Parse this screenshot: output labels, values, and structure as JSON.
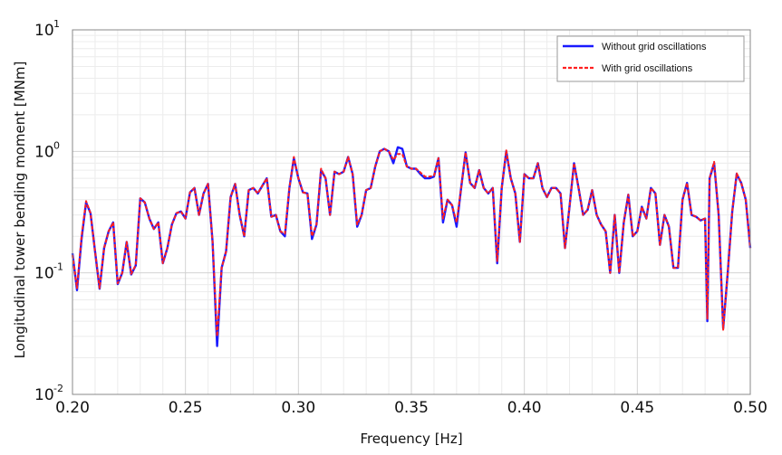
{
  "chart_data": {
    "type": "line",
    "title": "",
    "xlabel": "Frequency [Hz]",
    "ylabel": "Longitudinal tower bending moment  [MNm]",
    "xlim": [
      0.2,
      0.5
    ],
    "ylim": [
      0.01,
      10
    ],
    "yscale": "log",
    "grid": true,
    "legend_position": "top-right",
    "x_ticks": [
      "0.20",
      "0.25",
      "0.30",
      "0.35",
      "0.40",
      "0.45",
      "0.50"
    ],
    "y_ticks": [
      {
        "base": "10",
        "exp": "-2"
      },
      {
        "base": "10",
        "exp": "-1"
      },
      {
        "base": "10",
        "exp": "0"
      },
      {
        "base": "10",
        "exp": "1"
      }
    ],
    "series": [
      {
        "name": "Without grid oscillations",
        "color": "#1a1aff",
        "style": "solid",
        "points": [
          [
            0.2,
            0.145
          ],
          [
            0.202,
            0.072
          ],
          [
            0.204,
            0.19
          ],
          [
            0.206,
            0.38
          ],
          [
            0.208,
            0.31
          ],
          [
            0.21,
            0.15
          ],
          [
            0.212,
            0.074
          ],
          [
            0.214,
            0.16
          ],
          [
            0.216,
            0.22
          ],
          [
            0.218,
            0.26
          ],
          [
            0.22,
            0.081
          ],
          [
            0.222,
            0.1
          ],
          [
            0.224,
            0.18
          ],
          [
            0.226,
            0.097
          ],
          [
            0.228,
            0.115
          ],
          [
            0.23,
            0.41
          ],
          [
            0.232,
            0.38
          ],
          [
            0.234,
            0.28
          ],
          [
            0.236,
            0.23
          ],
          [
            0.238,
            0.26
          ],
          [
            0.24,
            0.12
          ],
          [
            0.242,
            0.16
          ],
          [
            0.244,
            0.25
          ],
          [
            0.246,
            0.31
          ],
          [
            0.248,
            0.32
          ],
          [
            0.25,
            0.28
          ],
          [
            0.252,
            0.46
          ],
          [
            0.254,
            0.5
          ],
          [
            0.256,
            0.3
          ],
          [
            0.258,
            0.45
          ],
          [
            0.26,
            0.54
          ],
          [
            0.262,
            0.18
          ],
          [
            0.264,
            0.025
          ],
          [
            0.266,
            0.11
          ],
          [
            0.268,
            0.15
          ],
          [
            0.27,
            0.42
          ],
          [
            0.272,
            0.54
          ],
          [
            0.274,
            0.3
          ],
          [
            0.276,
            0.2
          ],
          [
            0.278,
            0.48
          ],
          [
            0.28,
            0.5
          ],
          [
            0.282,
            0.45
          ],
          [
            0.284,
            0.52
          ],
          [
            0.286,
            0.6
          ],
          [
            0.288,
            0.29
          ],
          [
            0.29,
            0.3
          ],
          [
            0.292,
            0.22
          ],
          [
            0.294,
            0.2
          ],
          [
            0.296,
            0.5
          ],
          [
            0.298,
            0.88
          ],
          [
            0.3,
            0.6
          ],
          [
            0.302,
            0.46
          ],
          [
            0.304,
            0.45
          ],
          [
            0.306,
            0.19
          ],
          [
            0.308,
            0.25
          ],
          [
            0.31,
            0.7
          ],
          [
            0.312,
            0.6
          ],
          [
            0.314,
            0.3
          ],
          [
            0.316,
            0.68
          ],
          [
            0.318,
            0.65
          ],
          [
            0.32,
            0.68
          ],
          [
            0.322,
            0.9
          ],
          [
            0.324,
            0.65
          ],
          [
            0.326,
            0.24
          ],
          [
            0.328,
            0.3
          ],
          [
            0.33,
            0.48
          ],
          [
            0.332,
            0.5
          ],
          [
            0.334,
            0.75
          ],
          [
            0.336,
            1.0
          ],
          [
            0.338,
            1.05
          ],
          [
            0.34,
            1.0
          ],
          [
            0.342,
            0.8
          ],
          [
            0.344,
            1.08
          ],
          [
            0.346,
            1.05
          ],
          [
            0.348,
            0.75
          ],
          [
            0.35,
            0.72
          ],
          [
            0.352,
            0.72
          ],
          [
            0.354,
            0.65
          ],
          [
            0.356,
            0.6
          ],
          [
            0.358,
            0.6
          ],
          [
            0.36,
            0.62
          ],
          [
            0.362,
            0.88
          ],
          [
            0.364,
            0.26
          ],
          [
            0.366,
            0.4
          ],
          [
            0.368,
            0.36
          ],
          [
            0.37,
            0.24
          ],
          [
            0.372,
            0.5
          ],
          [
            0.374,
            0.98
          ],
          [
            0.376,
            0.55
          ],
          [
            0.378,
            0.5
          ],
          [
            0.38,
            0.7
          ],
          [
            0.382,
            0.5
          ],
          [
            0.384,
            0.45
          ],
          [
            0.386,
            0.5
          ],
          [
            0.388,
            0.12
          ],
          [
            0.39,
            0.5
          ],
          [
            0.392,
            1.0
          ],
          [
            0.394,
            0.6
          ],
          [
            0.396,
            0.45
          ],
          [
            0.398,
            0.18
          ],
          [
            0.4,
            0.65
          ],
          [
            0.402,
            0.6
          ],
          [
            0.404,
            0.6
          ],
          [
            0.406,
            0.8
          ],
          [
            0.408,
            0.5
          ],
          [
            0.41,
            0.42
          ],
          [
            0.412,
            0.5
          ],
          [
            0.414,
            0.5
          ],
          [
            0.416,
            0.45
          ],
          [
            0.418,
            0.16
          ],
          [
            0.42,
            0.35
          ],
          [
            0.422,
            0.8
          ],
          [
            0.424,
            0.5
          ],
          [
            0.426,
            0.3
          ],
          [
            0.428,
            0.33
          ],
          [
            0.43,
            0.48
          ],
          [
            0.432,
            0.3
          ],
          [
            0.434,
            0.25
          ],
          [
            0.436,
            0.22
          ],
          [
            0.438,
            0.1
          ],
          [
            0.44,
            0.3
          ],
          [
            0.442,
            0.1
          ],
          [
            0.444,
            0.26
          ],
          [
            0.446,
            0.44
          ],
          [
            0.448,
            0.2
          ],
          [
            0.45,
            0.22
          ],
          [
            0.452,
            0.35
          ],
          [
            0.454,
            0.28
          ],
          [
            0.456,
            0.5
          ],
          [
            0.458,
            0.45
          ],
          [
            0.46,
            0.17
          ],
          [
            0.462,
            0.3
          ],
          [
            0.464,
            0.24
          ],
          [
            0.466,
            0.11
          ],
          [
            0.468,
            0.11
          ],
          [
            0.47,
            0.4
          ],
          [
            0.472,
            0.55
          ],
          [
            0.474,
            0.3
          ],
          [
            0.476,
            0.29
          ],
          [
            0.478,
            0.27
          ],
          [
            0.48,
            0.28
          ],
          [
            0.481,
            0.04
          ],
          [
            0.482,
            0.6
          ],
          [
            0.484,
            0.8
          ],
          [
            0.486,
            0.3
          ],
          [
            0.488,
            0.035
          ],
          [
            0.49,
            0.1
          ],
          [
            0.492,
            0.32
          ],
          [
            0.494,
            0.65
          ],
          [
            0.496,
            0.55
          ],
          [
            0.498,
            0.4
          ],
          [
            0.5,
            0.16
          ]
        ]
      },
      {
        "name": "With grid oscillations",
        "color": "#ff2020",
        "style": "dashed",
        "points": [
          [
            0.2,
            0.14
          ],
          [
            0.202,
            0.075
          ],
          [
            0.204,
            0.2
          ],
          [
            0.206,
            0.39
          ],
          [
            0.208,
            0.31
          ],
          [
            0.21,
            0.15
          ],
          [
            0.212,
            0.075
          ],
          [
            0.214,
            0.16
          ],
          [
            0.216,
            0.22
          ],
          [
            0.218,
            0.26
          ],
          [
            0.22,
            0.082
          ],
          [
            0.222,
            0.1
          ],
          [
            0.224,
            0.18
          ],
          [
            0.226,
            0.098
          ],
          [
            0.228,
            0.116
          ],
          [
            0.23,
            0.41
          ],
          [
            0.232,
            0.38
          ],
          [
            0.234,
            0.28
          ],
          [
            0.236,
            0.23
          ],
          [
            0.238,
            0.26
          ],
          [
            0.24,
            0.12
          ],
          [
            0.242,
            0.16
          ],
          [
            0.244,
            0.25
          ],
          [
            0.246,
            0.31
          ],
          [
            0.248,
            0.32
          ],
          [
            0.25,
            0.28
          ],
          [
            0.252,
            0.46
          ],
          [
            0.254,
            0.5
          ],
          [
            0.256,
            0.3
          ],
          [
            0.258,
            0.45
          ],
          [
            0.26,
            0.54
          ],
          [
            0.262,
            0.18
          ],
          [
            0.264,
            0.03
          ],
          [
            0.266,
            0.11
          ],
          [
            0.268,
            0.15
          ],
          [
            0.27,
            0.42
          ],
          [
            0.272,
            0.54
          ],
          [
            0.274,
            0.3
          ],
          [
            0.276,
            0.2
          ],
          [
            0.278,
            0.48
          ],
          [
            0.28,
            0.5
          ],
          [
            0.282,
            0.45
          ],
          [
            0.284,
            0.52
          ],
          [
            0.286,
            0.6
          ],
          [
            0.288,
            0.29
          ],
          [
            0.29,
            0.3
          ],
          [
            0.292,
            0.22
          ],
          [
            0.294,
            0.21
          ],
          [
            0.296,
            0.5
          ],
          [
            0.298,
            0.9
          ],
          [
            0.3,
            0.6
          ],
          [
            0.302,
            0.46
          ],
          [
            0.304,
            0.45
          ],
          [
            0.306,
            0.2
          ],
          [
            0.308,
            0.25
          ],
          [
            0.31,
            0.72
          ],
          [
            0.312,
            0.6
          ],
          [
            0.314,
            0.3
          ],
          [
            0.316,
            0.68
          ],
          [
            0.318,
            0.65
          ],
          [
            0.32,
            0.68
          ],
          [
            0.322,
            0.9
          ],
          [
            0.324,
            0.65
          ],
          [
            0.326,
            0.25
          ],
          [
            0.328,
            0.3
          ],
          [
            0.33,
            0.48
          ],
          [
            0.332,
            0.5
          ],
          [
            0.334,
            0.75
          ],
          [
            0.336,
            1.0
          ],
          [
            0.338,
            1.05
          ],
          [
            0.34,
            1.0
          ],
          [
            0.342,
            0.85
          ],
          [
            0.344,
            0.95
          ],
          [
            0.346,
            0.95
          ],
          [
            0.348,
            0.75
          ],
          [
            0.35,
            0.72
          ],
          [
            0.352,
            0.72
          ],
          [
            0.354,
            0.67
          ],
          [
            0.356,
            0.62
          ],
          [
            0.358,
            0.62
          ],
          [
            0.36,
            0.63
          ],
          [
            0.362,
            0.88
          ],
          [
            0.364,
            0.28
          ],
          [
            0.366,
            0.4
          ],
          [
            0.368,
            0.36
          ],
          [
            0.37,
            0.26
          ],
          [
            0.372,
            0.5
          ],
          [
            0.374,
            0.98
          ],
          [
            0.376,
            0.55
          ],
          [
            0.378,
            0.5
          ],
          [
            0.38,
            0.7
          ],
          [
            0.382,
            0.5
          ],
          [
            0.384,
            0.45
          ],
          [
            0.386,
            0.5
          ],
          [
            0.388,
            0.125
          ],
          [
            0.39,
            0.5
          ],
          [
            0.392,
            1.02
          ],
          [
            0.394,
            0.6
          ],
          [
            0.396,
            0.45
          ],
          [
            0.398,
            0.18
          ],
          [
            0.4,
            0.65
          ],
          [
            0.402,
            0.6
          ],
          [
            0.404,
            0.6
          ],
          [
            0.406,
            0.8
          ],
          [
            0.408,
            0.5
          ],
          [
            0.41,
            0.42
          ],
          [
            0.412,
            0.5
          ],
          [
            0.414,
            0.5
          ],
          [
            0.416,
            0.45
          ],
          [
            0.418,
            0.16
          ],
          [
            0.42,
            0.35
          ],
          [
            0.422,
            0.8
          ],
          [
            0.424,
            0.5
          ],
          [
            0.426,
            0.3
          ],
          [
            0.428,
            0.33
          ],
          [
            0.43,
            0.48
          ],
          [
            0.432,
            0.3
          ],
          [
            0.434,
            0.25
          ],
          [
            0.436,
            0.22
          ],
          [
            0.438,
            0.1
          ],
          [
            0.44,
            0.3
          ],
          [
            0.442,
            0.1
          ],
          [
            0.444,
            0.26
          ],
          [
            0.446,
            0.44
          ],
          [
            0.448,
            0.2
          ],
          [
            0.45,
            0.22
          ],
          [
            0.452,
            0.35
          ],
          [
            0.454,
            0.28
          ],
          [
            0.456,
            0.5
          ],
          [
            0.458,
            0.45
          ],
          [
            0.46,
            0.17
          ],
          [
            0.462,
            0.3
          ],
          [
            0.464,
            0.24
          ],
          [
            0.466,
            0.11
          ],
          [
            0.468,
            0.11
          ],
          [
            0.47,
            0.4
          ],
          [
            0.472,
            0.55
          ],
          [
            0.474,
            0.3
          ],
          [
            0.476,
            0.29
          ],
          [
            0.478,
            0.27
          ],
          [
            0.48,
            0.28
          ],
          [
            0.481,
            0.042
          ],
          [
            0.482,
            0.6
          ],
          [
            0.484,
            0.82
          ],
          [
            0.486,
            0.3
          ],
          [
            0.488,
            0.034
          ],
          [
            0.49,
            0.1
          ],
          [
            0.492,
            0.32
          ],
          [
            0.494,
            0.66
          ],
          [
            0.496,
            0.55
          ],
          [
            0.498,
            0.4
          ],
          [
            0.5,
            0.16
          ]
        ]
      }
    ]
  }
}
